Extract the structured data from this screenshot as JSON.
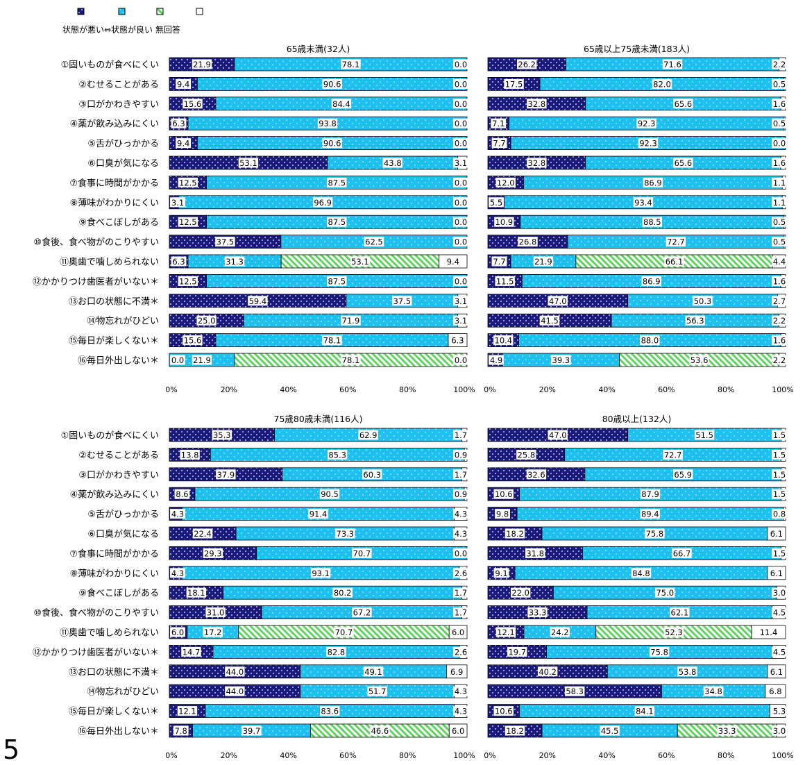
{
  "legend": {
    "items": [
      {
        "key": "bad",
        "color": "#1a1a7c"
      },
      {
        "key": "good",
        "color": "#1ec0f0"
      },
      {
        "key": "hatch",
        "color": "#5fd35f"
      },
      {
        "key": "none",
        "color": "#ffffff"
      }
    ],
    "caption": "状態が悪い⇔状態が良い  無回答"
  },
  "page_number": "5",
  "chart_data": {
    "type": "bar",
    "stacked": true,
    "orientation": "horizontal",
    "categories": [
      "①固いものが食べにくい",
      "②むせることがある",
      "③口がかわきやすい",
      "④薬が飲み込みにくい",
      "⑤舌がひっかかる",
      "⑥口臭が気になる",
      "⑦食事に時間がかかる",
      "⑧薄味がわかりにくい",
      "⑨食べこぼしがある",
      "⑩食後、食べ物がのこりやすい",
      "⑪奥歯で噛しめられない",
      "⑫かかりつけ歯医者がいない＊",
      "⑬お口の状態に不満＊",
      "⑭物忘れがひどい",
      "⑮毎日が楽しくない＊",
      "⑯毎日外出しない＊"
    ],
    "xlim": [
      0,
      100
    ],
    "xticks": [
      "0%",
      "20%",
      "40%",
      "60%",
      "80%",
      "100%"
    ],
    "panels": [
      {
        "title": "65歳未満(32人)",
        "rows": [
          [
            21.9,
            78.1,
            0,
            "0.0"
          ],
          [
            9.4,
            90.6,
            0,
            "0.0"
          ],
          [
            15.6,
            84.4,
            0,
            "0.0"
          ],
          [
            6.3,
            93.8,
            0,
            "0.0"
          ],
          [
            9.4,
            90.6,
            0,
            "0.0"
          ],
          [
            53.1,
            43.8,
            0,
            "3.1"
          ],
          [
            12.5,
            87.5,
            0,
            "0.0"
          ],
          [
            3.1,
            96.9,
            0,
            "0.0"
          ],
          [
            12.5,
            87.5,
            0,
            "0.0"
          ],
          [
            37.5,
            62.5,
            0,
            "0.0"
          ],
          [
            6.3,
            31.3,
            53.1,
            "9.4"
          ],
          [
            12.5,
            87.5,
            0,
            "0.0"
          ],
          [
            59.4,
            37.5,
            0,
            "3.1"
          ],
          [
            25.0,
            71.9,
            0,
            "3.1"
          ],
          [
            15.6,
            78.1,
            0,
            "6.3"
          ],
          [
            0.0,
            21.9,
            78.1,
            "0.0"
          ]
        ]
      },
      {
        "title": "65歳以上75歳未満(183人)",
        "rows": [
          [
            26.2,
            71.6,
            0,
            "2.2"
          ],
          [
            17.5,
            82.0,
            0,
            "0.5"
          ],
          [
            32.8,
            65.6,
            0,
            "1.6"
          ],
          [
            7.1,
            92.3,
            0,
            "0.5"
          ],
          [
            7.7,
            92.3,
            0,
            "0.0"
          ],
          [
            32.8,
            65.6,
            0,
            "1.6"
          ],
          [
            12.0,
            86.9,
            0,
            "1.1"
          ],
          [
            5.5,
            93.4,
            0,
            "1.1"
          ],
          [
            10.9,
            88.5,
            0,
            "0.5"
          ],
          [
            26.8,
            72.7,
            0,
            "0.5"
          ],
          [
            7.7,
            21.9,
            66.1,
            "4.4"
          ],
          [
            11.5,
            86.9,
            0,
            "1.6"
          ],
          [
            47.0,
            50.3,
            0,
            "2.7"
          ],
          [
            41.5,
            56.3,
            0,
            "2.2"
          ],
          [
            10.4,
            88.0,
            0,
            "1.6"
          ],
          [
            4.9,
            39.3,
            53.6,
            "2.2"
          ]
        ]
      },
      {
        "title": "75歳80歳未満(116人)",
        "rows": [
          [
            35.3,
            62.9,
            0,
            "1.7"
          ],
          [
            13.8,
            85.3,
            0,
            "0.9"
          ],
          [
            37.9,
            60.3,
            0,
            "1.7"
          ],
          [
            8.6,
            90.5,
            0,
            "0.9"
          ],
          [
            4.3,
            91.4,
            0,
            "4.3"
          ],
          [
            22.4,
            73.3,
            0,
            "4.3"
          ],
          [
            29.3,
            70.7,
            0,
            "0.0"
          ],
          [
            4.3,
            93.1,
            0,
            "2.6"
          ],
          [
            18.1,
            80.2,
            0,
            "1.7"
          ],
          [
            31.0,
            67.2,
            0,
            "1.7"
          ],
          [
            6.0,
            17.2,
            70.7,
            "6.0"
          ],
          [
            14.7,
            82.8,
            0,
            "2.6"
          ],
          [
            44.0,
            49.1,
            0,
            "6.9"
          ],
          [
            44.0,
            51.7,
            0,
            "4.3"
          ],
          [
            12.1,
            83.6,
            0,
            "4.3"
          ],
          [
            7.8,
            39.7,
            46.6,
            "6.0"
          ]
        ]
      },
      {
        "title": "80歳以上(132人)",
        "rows": [
          [
            47.0,
            51.5,
            0,
            "1.5"
          ],
          [
            25.8,
            72.7,
            0,
            "1.5"
          ],
          [
            32.6,
            65.9,
            0,
            "1.5"
          ],
          [
            10.6,
            87.9,
            0,
            "1.5"
          ],
          [
            9.8,
            89.4,
            0,
            "0.8"
          ],
          [
            18.2,
            75.8,
            0,
            "6.1"
          ],
          [
            31.8,
            66.7,
            0,
            "1.5"
          ],
          [
            9.1,
            84.8,
            0,
            "6.1"
          ],
          [
            22.0,
            75.0,
            0,
            "3.0"
          ],
          [
            33.3,
            62.1,
            0,
            "4.5"
          ],
          [
            12.1,
            24.2,
            52.3,
            "11.4"
          ],
          [
            19.7,
            75.8,
            0,
            "4.5"
          ],
          [
            40.2,
            53.8,
            0,
            "6.1"
          ],
          [
            58.3,
            34.8,
            0,
            "6.8"
          ],
          [
            10.6,
            84.1,
            0,
            "5.3"
          ],
          [
            18.2,
            45.5,
            33.3,
            "3.0"
          ]
        ]
      }
    ]
  }
}
